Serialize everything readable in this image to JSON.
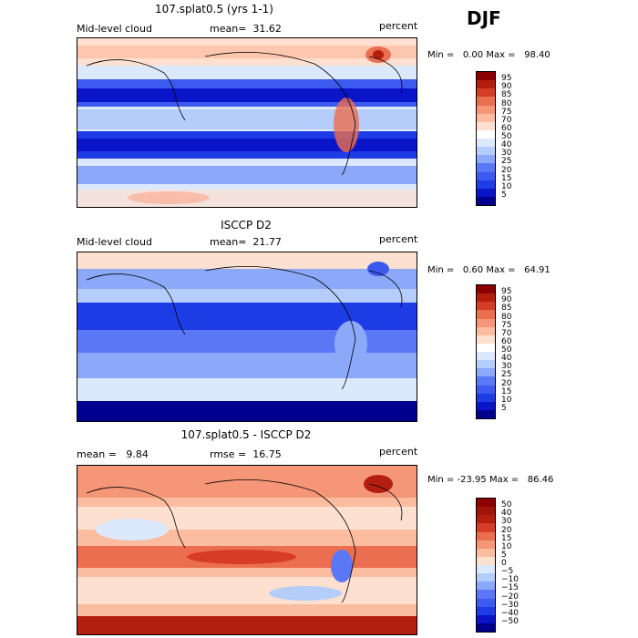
{
  "season": "DJF",
  "chart_data": [
    {
      "type": "heatmap",
      "title": "107.splat0.5 (yrs 1-1)",
      "variable": "Mid-level cloud",
      "mean_label": "mean=",
      "mean": "31.62",
      "units": "percent",
      "min_label": "Min =",
      "min": "0.00",
      "max_label": "Max =",
      "max": "98.40",
      "colorbar": {
        "levels": [
          "5",
          "10",
          "15",
          "20",
          "25",
          "30",
          "40",
          "50",
          "60",
          "70",
          "75",
          "80",
          "85",
          "90",
          "95"
        ],
        "colors": [
          "#00008f",
          "#0a14c8",
          "#1e3ce6",
          "#3c5af0",
          "#5a78f5",
          "#8ca8f8",
          "#b4cdfa",
          "#dce8fc",
          "#ffffff",
          "#fde0d0",
          "#fbbca0",
          "#f59678",
          "#eb6e50",
          "#d73c28",
          "#b41e0f",
          "#8c0000"
        ]
      }
    },
    {
      "type": "heatmap",
      "title": "ISCCP D2",
      "variable": "Mid-level cloud",
      "mean_label": "mean=",
      "mean": "21.77",
      "units": "percent",
      "min_label": "Min =",
      "min": "0.60",
      "max_label": "Max =",
      "max": "64.91",
      "colorbar": {
        "levels": [
          "5",
          "10",
          "15",
          "20",
          "25",
          "30",
          "40",
          "50",
          "60",
          "70",
          "75",
          "80",
          "85",
          "90",
          "95"
        ],
        "colors": [
          "#00008f",
          "#0a14c8",
          "#1e3ce6",
          "#3c5af0",
          "#5a78f5",
          "#8ca8f8",
          "#b4cdfa",
          "#dce8fc",
          "#ffffff",
          "#fde0d0",
          "#fbbca0",
          "#f59678",
          "#eb6e50",
          "#d73c28",
          "#b41e0f",
          "#8c0000"
        ]
      }
    },
    {
      "type": "heatmap",
      "title": "107.splat0.5 - ISCCP D2",
      "mean_label": "mean =",
      "mean": "9.84",
      "rmse_label": "rmse =",
      "rmse": "16.75",
      "units": "percent",
      "min_label": "Min =",
      "min": "-23.95",
      "max_label": "Max =",
      "max": "86.46",
      "colorbar": {
        "levels": [
          "−50",
          "−40",
          "−30",
          "−20",
          "−15",
          "−10",
          "−5",
          "0",
          "5",
          "10",
          "15",
          "20",
          "30",
          "40",
          "50"
        ],
        "colors": [
          "#00008f",
          "#0a14c8",
          "#1e3ce6",
          "#3c5af0",
          "#5a78f5",
          "#8ca8f8",
          "#b4cdfa",
          "#dce8fc",
          "#fde0d0",
          "#fbbca0",
          "#f59678",
          "#eb6e50",
          "#d73c28",
          "#b41e0f",
          "#a0140a",
          "#8c0000"
        ]
      }
    }
  ]
}
